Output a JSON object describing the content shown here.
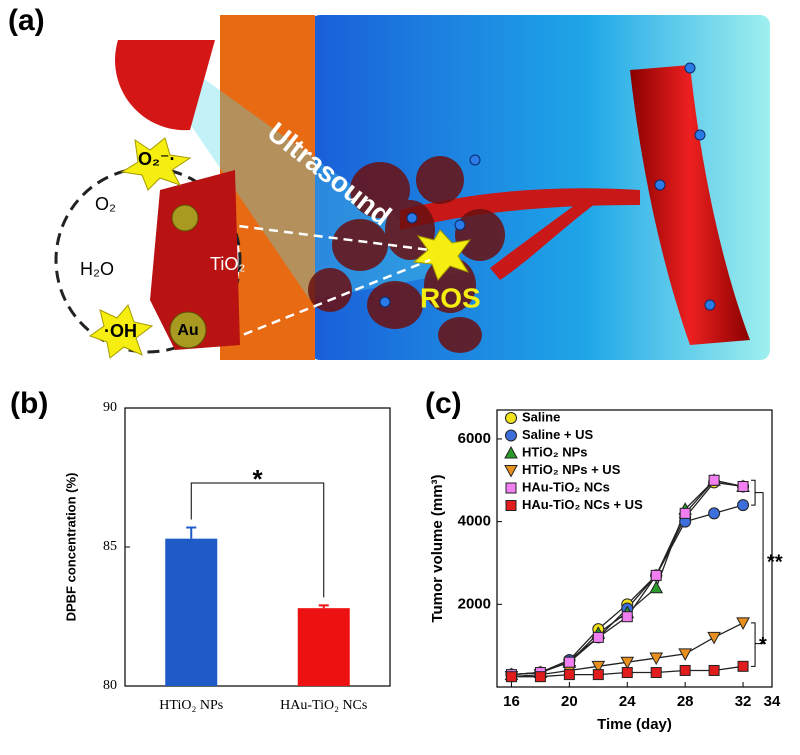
{
  "illustration": {
    "label": "(a)",
    "texts": [
      "Ultrasound",
      "O₂⁻·",
      "O₂",
      "H₂O",
      "·OH",
      "TiO₂",
      "Au",
      "ROS"
    ]
  },
  "chart_data": [
    {
      "type": "bar",
      "label": "(b)",
      "ylabel": "DPBF concentration (%)",
      "categories": [
        "HTiO₂ NPs",
        "HAu-TiO₂ NCs"
      ],
      "values": [
        85.3,
        82.8
      ],
      "errors": [
        0.4,
        0.1
      ],
      "colors": [
        "#1e5bc6",
        "#ee1111"
      ],
      "ylim": [
        80,
        90
      ],
      "yticks": [
        80,
        85,
        90
      ],
      "significance": "*"
    },
    {
      "type": "line",
      "label": "(c)",
      "xlabel": "Time (day)",
      "ylabel": "Tumor volume (mm³)",
      "x": [
        16,
        18,
        20,
        22,
        24,
        26,
        28,
        30,
        32
      ],
      "series": [
        {
          "name": "Saline",
          "color": "#f2e21a",
          "marker": "circle",
          "values": [
            300,
            350,
            650,
            1400,
            2000,
            2700,
            4100,
            4950,
            4850
          ]
        },
        {
          "name": "Saline + US",
          "color": "#3c6fdc",
          "marker": "circle",
          "values": [
            300,
            350,
            650,
            1200,
            1900,
            2700,
            4000,
            4200,
            4400
          ]
        },
        {
          "name": "HTiO₂ NPs",
          "color": "#2a9a2a",
          "marker": "triangle-up",
          "values": [
            300,
            350,
            600,
            1300,
            1800,
            2400,
            4300,
            5000,
            4850
          ]
        },
        {
          "name": "HTiO₂ NPs + US",
          "color": "#e8901e",
          "marker": "triangle-down",
          "values": [
            250,
            300,
            400,
            500,
            600,
            700,
            800,
            1200,
            1550
          ]
        },
        {
          "name": "HAu-TiO₂ NCs",
          "color": "#f27ff2",
          "marker": "square",
          "values": [
            300,
            350,
            600,
            1200,
            1700,
            2700,
            4200,
            5000,
            4850
          ]
        },
        {
          "name": "HAu-TiO₂ NCs + US",
          "color": "#e01c1c",
          "marker": "square",
          "values": [
            250,
            250,
            300,
            300,
            350,
            350,
            400,
            400,
            500
          ]
        }
      ],
      "xlim": [
        15,
        34
      ],
      "xticks": [
        16,
        20,
        24,
        28,
        32,
        34
      ],
      "ylim": [
        0,
        6700
      ],
      "yticks": [
        2000,
        4000,
        6000
      ],
      "legend": "upper-left",
      "annotations": [
        "**",
        "*"
      ]
    }
  ]
}
